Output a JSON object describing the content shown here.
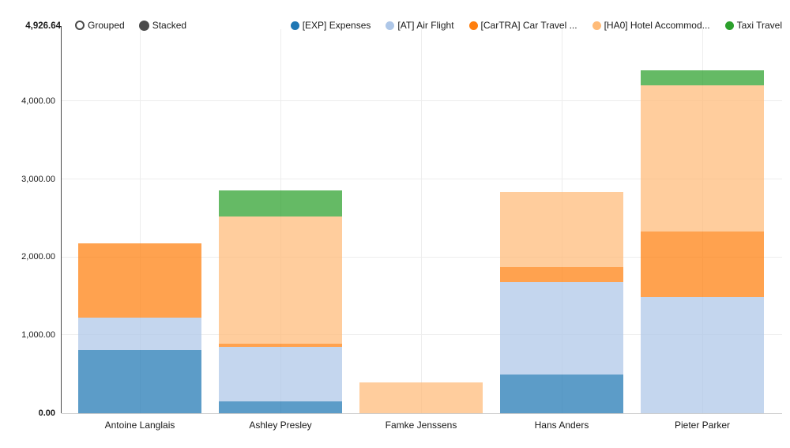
{
  "toolbar": {
    "modes": [
      {
        "label": "Grouped",
        "selected": false
      },
      {
        "label": "Stacked",
        "selected": true
      }
    ]
  },
  "legend": [
    {
      "label": "[EXP] Expenses",
      "color": "#1f77b4"
    },
    {
      "label": "[AT] Air Flight",
      "color": "#aec7e8"
    },
    {
      "label": "[CarTRA] Car Travel ...",
      "color": "#ff7f0e"
    },
    {
      "label": "[HA0] Hotel Accommod...",
      "color": "#ffbb78"
    },
    {
      "label": "Taxi Travel",
      "color": "#2ca02c"
    }
  ],
  "chart_data": {
    "type": "bar",
    "stacked": true,
    "orientation": "vertical",
    "categories": [
      "Antoine Langlais",
      "Ashley Presley",
      "Famke Jenssens",
      "Hans Anders",
      "Pieter Parker"
    ],
    "series": [
      {
        "name": "[EXP] Expenses",
        "color": "#1f77b4",
        "values": [
          810,
          150,
          0,
          495,
          0
        ]
      },
      {
        "name": "[AT] Air Flight",
        "color": "#aec7e8",
        "values": [
          420,
          700,
          0,
          1190,
          1490
        ]
      },
      {
        "name": "[CarTRA] Car Travel ...",
        "color": "#ff7f0e",
        "values": [
          945,
          40,
          0,
          195,
          845
        ]
      },
      {
        "name": "[HA0] Hotel Accommod...",
        "color": "#ffbb78",
        "values": [
          0,
          1630,
          400,
          955,
          1870
        ]
      },
      {
        "name": "Taxi Travel",
        "color": "#2ca02c",
        "values": [
          0,
          335,
          0,
          0,
          195
        ]
      }
    ],
    "stack_totals": [
      2175,
      2855,
      400,
      2835,
      4400
    ],
    "ylim": [
      0,
      4926.64
    ],
    "y_max_label": "4,926.64",
    "yticks": [
      {
        "value": 0,
        "label": "0.00",
        "bold": true
      },
      {
        "value": 1000,
        "label": "1,000.00",
        "bold": false
      },
      {
        "value": 2000,
        "label": "2,000.00",
        "bold": false
      },
      {
        "value": 3000,
        "label": "3,000.00",
        "bold": false
      },
      {
        "value": 4000,
        "label": "4,000.00",
        "bold": false
      }
    ],
    "grid": true,
    "legend_position": "top-right",
    "bar_fill_opacity": 0.73
  }
}
